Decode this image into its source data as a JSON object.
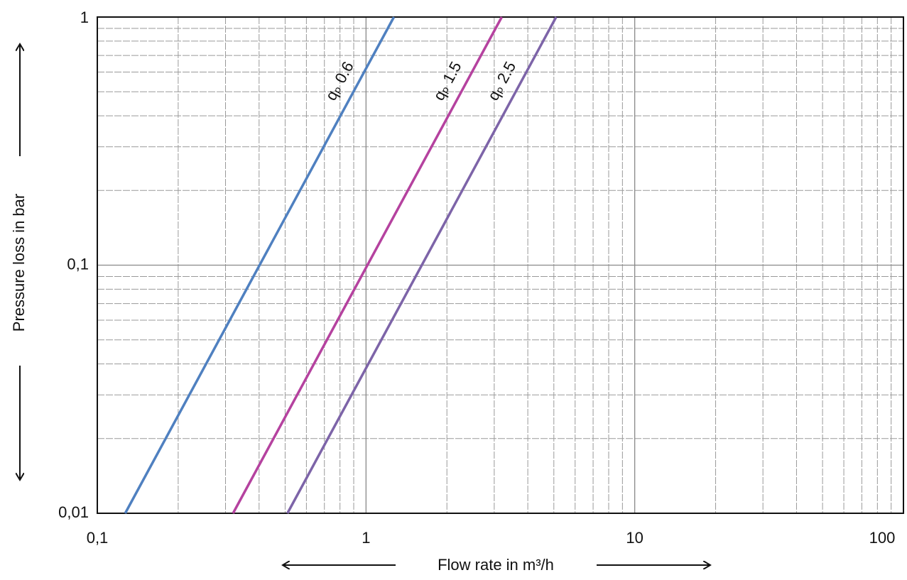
{
  "chart_data": {
    "type": "line",
    "xlabel": "Flow rate in m³/h",
    "ylabel": "Pressure loss in bar",
    "xscale": "log",
    "yscale": "log",
    "xlim": [
      0.1,
      100
    ],
    "ylim": [
      0.01,
      1
    ],
    "xticks": [
      {
        "value": 0.1,
        "label": "0,1"
      },
      1,
      10,
      100
    ],
    "yticks": [
      {
        "value": 0.01,
        "label": "0,01"
      },
      {
        "value": 0.1,
        "label": "0,1"
      },
      1
    ],
    "grid": true,
    "series": [
      {
        "name": "qₚ 0.6",
        "color": "#4f80c0",
        "x": [
          0.127,
          1.27
        ],
        "values": [
          0.01,
          1
        ]
      },
      {
        "name": "qₚ 1.5",
        "color": "#b5429f",
        "x": [
          0.32,
          3.2
        ],
        "values": [
          0.01,
          1
        ]
      },
      {
        "name": "qₚ 2.5",
        "color": "#7d64a8",
        "x": [
          0.51,
          5.1
        ],
        "values": [
          0.01,
          1
        ]
      }
    ]
  }
}
